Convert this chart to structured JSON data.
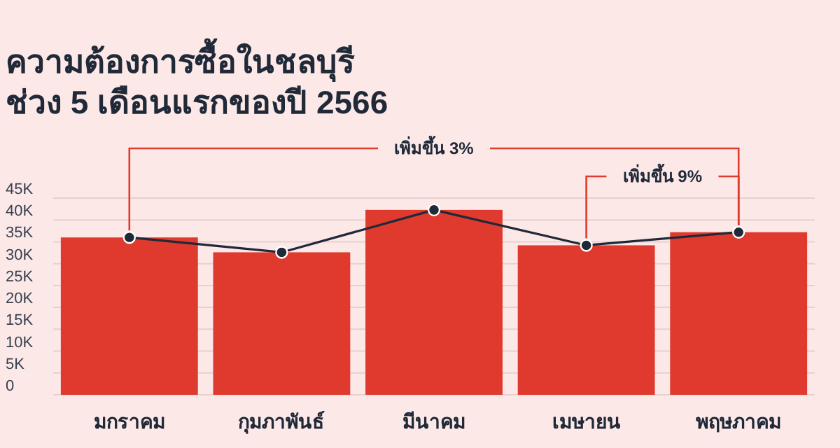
{
  "chart_data": {
    "type": "bar",
    "title": "ความต้องการซื้อในชลบุรี\nช่วง 5 เดือนแรกของปี 2566",
    "categories": [
      "มกราคม",
      "กุมภาพันธ์",
      "มีนาคม",
      "เมษายน",
      "พฤษภาคม"
    ],
    "series": [
      {
        "color": "#e03a2f",
        "values": [
          36000,
          32600,
          42300,
          34200,
          37200
        ]
      },
      {
        "type": "line",
        "color": "#1f2937",
        "marker": "circle",
        "values": [
          36000,
          32600,
          42300,
          34200,
          37200
        ]
      }
    ],
    "ylim": [
      0,
      45000
    ],
    "yticks": [
      0,
      {
        "value": 5000,
        "label": "5K"
      },
      {
        "value": 10000,
        "label": "10K"
      },
      {
        "value": 15000,
        "label": "15K"
      },
      {
        "value": 20000,
        "label": "20K"
      },
      {
        "value": 25000,
        "label": "25K"
      },
      {
        "value": 30000,
        "label": "30K"
      },
      {
        "value": 35000,
        "label": "35K"
      },
      {
        "value": 40000,
        "label": "40K"
      },
      {
        "value": 45000,
        "label": "45K"
      }
    ],
    "grid": "y",
    "annotations": [
      {
        "text": "เพิ่มขึ้น 3%",
        "x": "มกราคม",
        "y": 36000
      },
      {
        "text": "เพิ่มขึ้น 9%",
        "x": "เมษายน",
        "y": 34200
      }
    ]
  }
}
